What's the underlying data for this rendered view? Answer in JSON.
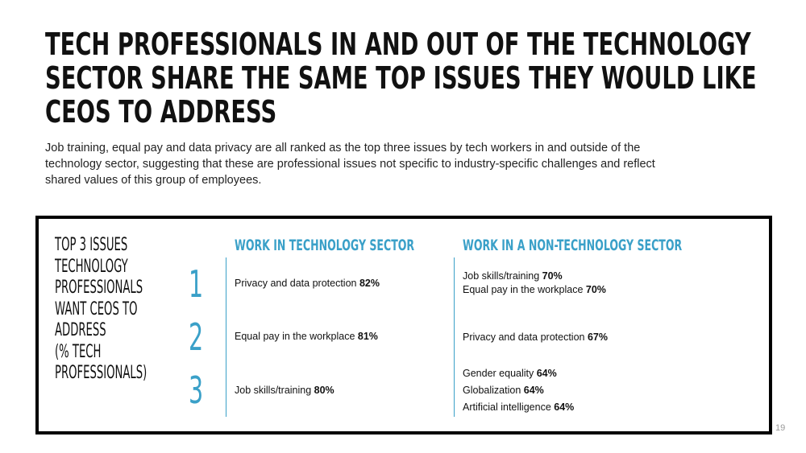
{
  "headline": {
    "lines": [
      "TECH PROFESSIONALS IN AND OUT OF THE TECHNOLOGY",
      "SECTOR SHARE THE SAME TOP ISSUES THEY WOULD LIKE",
      "CEOs TO ADDRESS"
    ]
  },
  "subtext": "Job training, equal pay and data privacy are all ranked as the top three issues by tech workers in and outside of the technology sector, suggesting that these are professional issues not specific to industry-specific challenges and reflect shared values of this group of employees.",
  "panel": {
    "heading_lines": [
      "TOP 3 ISSUES",
      "TECHNOLOGY",
      "PROFESSIONALS",
      "WANT CEOs TO",
      "ADDRESS",
      "(% TECH",
      "PROFESSIONALS)"
    ],
    "ranks": [
      "1",
      "2",
      "3"
    ],
    "tech_sector": {
      "title": "WORK IN TECHNOLOGY SECTOR",
      "items": [
        {
          "label": "Privacy and data protection",
          "value": "82%"
        },
        {
          "label": "Equal pay in the workplace",
          "value": "81%"
        },
        {
          "label": "Job skills/training",
          "value": "80%"
        }
      ]
    },
    "non_tech_sector": {
      "title": "WORK IN A NON-TECHNOLOGY SECTOR",
      "items": [
        {
          "label": "Job skills/training",
          "value": "70%"
        },
        {
          "label": "Equal pay in the workplace",
          "value": "70%"
        },
        {
          "label": "Privacy and data protection",
          "value": "67%"
        },
        {
          "label": "Gender equality",
          "value": "64%"
        },
        {
          "label": "Globalization",
          "value": "64%"
        },
        {
          "label": "Artificial intelligence",
          "value": "64%"
        }
      ]
    }
  },
  "page_number": "19",
  "colors": {
    "accent": "#3aa0c8",
    "text": "#111111",
    "border": "#000000"
  }
}
